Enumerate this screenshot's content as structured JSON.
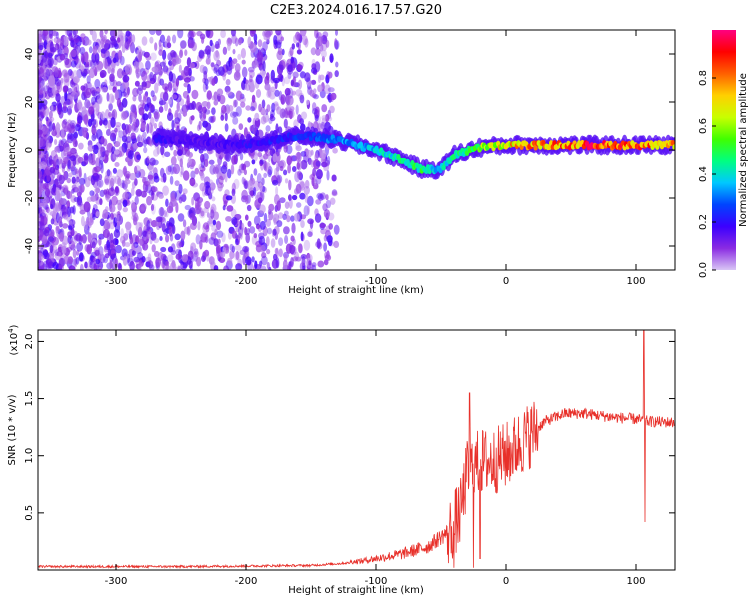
{
  "title": "C2E3.2024.016.17.57.G20",
  "chart_data": [
    {
      "type": "heatmap",
      "xlabel": "Height of straight line (km)",
      "ylabel": "Frequency (Hz)",
      "xlim": [
        -360,
        130
      ],
      "ylim": [
        -50,
        50
      ],
      "x_ticks": [
        -300,
        -200,
        -100,
        0,
        100
      ],
      "y_ticks": [
        -40,
        -20,
        0,
        20,
        40
      ],
      "colorbar": {
        "label": "Normalized spectral amplitude",
        "range": [
          0.0,
          1.0
        ],
        "ticks": [
          0.0,
          0.2,
          0.4,
          0.6,
          0.8
        ],
        "tick_labels": [
          "0.0",
          "0.2",
          "0.4",
          "0.6",
          "0.8"
        ],
        "colormap": [
          "#d9c6f5",
          "#8a2be2",
          "#3b00ff",
          "#0044ff",
          "#00c8ff",
          "#00ff80",
          "#40ff00",
          "#c8ff00",
          "#ffd000",
          "#ff6000",
          "#ff0000",
          "#ff0080"
        ]
      },
      "ridge": [
        {
          "x": -270,
          "y": 5,
          "amp": 0.2
        },
        {
          "x": -240,
          "y": 4,
          "amp": 0.15
        },
        {
          "x": -210,
          "y": 2,
          "amp": 0.18
        },
        {
          "x": -180,
          "y": 4,
          "amp": 0.22
        },
        {
          "x": -160,
          "y": 6,
          "amp": 0.25
        },
        {
          "x": -140,
          "y": 5,
          "amp": 0.3
        },
        {
          "x": -120,
          "y": 3,
          "amp": 0.35
        },
        {
          "x": -100,
          "y": 0,
          "amp": 0.4
        },
        {
          "x": -80,
          "y": -4,
          "amp": 0.45
        },
        {
          "x": -65,
          "y": -8,
          "amp": 0.5
        },
        {
          "x": -50,
          "y": -8,
          "amp": 0.4
        },
        {
          "x": -40,
          "y": -2,
          "amp": 0.45
        },
        {
          "x": -20,
          "y": 1,
          "amp": 0.6
        },
        {
          "x": 0,
          "y": 2,
          "amp": 0.75
        },
        {
          "x": 30,
          "y": 2,
          "amp": 0.85
        },
        {
          "x": 60,
          "y": 2,
          "amp": 0.9
        },
        {
          "x": 90,
          "y": 2,
          "amp": 0.9
        },
        {
          "x": 110,
          "y": 2,
          "amp": 0.85
        },
        {
          "x": 130,
          "y": 2,
          "amp": 0.8
        }
      ]
    },
    {
      "type": "line",
      "xlabel": "Height of straight line (km)",
      "ylabel": "SNR (10 * v/v)",
      "y_scale_label": "(x10",
      "y_scale_exp": "4",
      "y_scale_close": ")",
      "xlim": [
        -360,
        130
      ],
      "ylim": [
        0,
        2.1
      ],
      "x_ticks": [
        -300,
        -200,
        -100,
        0,
        100
      ],
      "y_ticks": [
        0.5,
        1.0,
        1.5,
        2.0
      ],
      "y_tick_labels": [
        "0.5",
        "1.0",
        "1.5",
        "2.0"
      ],
      "line_color": "#e8302a",
      "trend": [
        {
          "x": -360,
          "y": 0.03
        },
        {
          "x": -250,
          "y": 0.03
        },
        {
          "x": -150,
          "y": 0.04
        },
        {
          "x": -110,
          "y": 0.07
        },
        {
          "x": -80,
          "y": 0.12
        },
        {
          "x": -60,
          "y": 0.18
        },
        {
          "x": -45,
          "y": 0.3
        },
        {
          "x": -35,
          "y": 0.5
        },
        {
          "x": -30,
          "y": 0.85
        },
        {
          "x": -20,
          "y": 0.95
        },
        {
          "x": -10,
          "y": 0.95
        },
        {
          "x": 0,
          "y": 1.0
        },
        {
          "x": 10,
          "y": 1.1
        },
        {
          "x": 20,
          "y": 1.2
        },
        {
          "x": 30,
          "y": 1.3
        },
        {
          "x": 45,
          "y": 1.37
        },
        {
          "x": 60,
          "y": 1.37
        },
        {
          "x": 80,
          "y": 1.34
        },
        {
          "x": 100,
          "y": 1.32
        },
        {
          "x": 110,
          "y": 1.3
        },
        {
          "x": 130,
          "y": 1.29
        }
      ],
      "spikes": [
        {
          "x": -28,
          "y": 1.55
        },
        {
          "x": -40,
          "y": 0.02
        },
        {
          "x": -25,
          "y": 0.02
        },
        {
          "x": -20,
          "y": 0.1
        },
        {
          "x": 106,
          "y": 2.1
        },
        {
          "x": 107,
          "y": 0.42
        }
      ]
    }
  ]
}
